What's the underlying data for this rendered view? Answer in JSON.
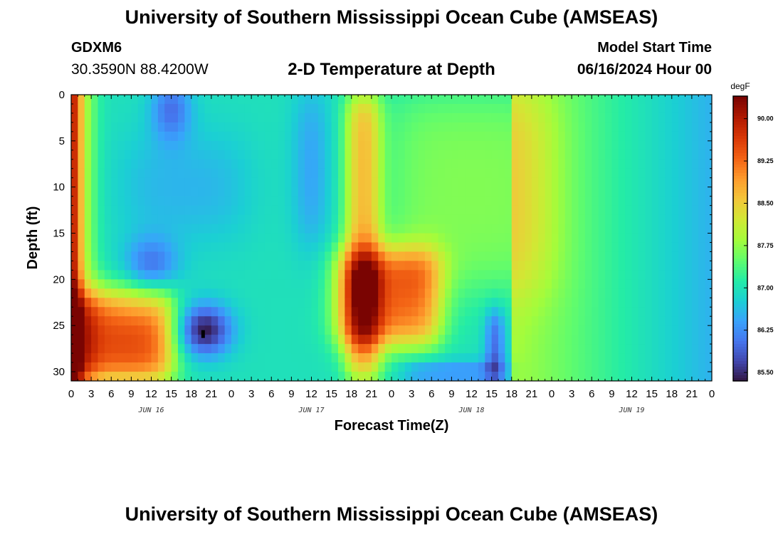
{
  "header": {
    "title": "University of Southern Mississippi Ocean Cube (AMSEAS)",
    "station_id": "GDXM6",
    "station_coords": "30.3590N  88.4200W",
    "chart_title": "2-D Temperature at Depth",
    "model_label": "Model Start Time",
    "model_time": "06/16/2024 Hour 00"
  },
  "footer": {
    "title": "University of Southern Mississippi Ocean Cube (AMSEAS)"
  },
  "chart_data": {
    "type": "heatmap",
    "title": "2-D Temperature at Depth",
    "xlabel": "Forecast Time(Z)",
    "ylabel": "Depth (ft)",
    "x_unit": "hours since 06/16/2024 00Z",
    "xlim": [
      0,
      96
    ],
    "ylim": [
      0,
      31
    ],
    "x_ticks": [
      0,
      3,
      6,
      9,
      12,
      15,
      18,
      21,
      24,
      27,
      30,
      33,
      36,
      39,
      42,
      45,
      48,
      51,
      54,
      57,
      60,
      63,
      66,
      69,
      72,
      75,
      78,
      81,
      84,
      87,
      90,
      93,
      96
    ],
    "x_tick_labels": [
      "0",
      "3",
      "6",
      "9",
      "12",
      "15",
      "18",
      "21",
      "0",
      "3",
      "6",
      "9",
      "12",
      "15",
      "18",
      "21",
      "0",
      "3",
      "6",
      "9",
      "12",
      "15",
      "18",
      "21",
      "0",
      "3",
      "6",
      "9",
      "12",
      "15",
      "18",
      "21",
      "0"
    ],
    "y_ticks": [
      0,
      5,
      10,
      15,
      20,
      25,
      30
    ],
    "y_tick_labels": [
      "0",
      "5",
      "10",
      "15",
      "20",
      "25",
      "30"
    ],
    "date_labels": [
      {
        "hour": 12,
        "text": "JUN 16"
      },
      {
        "hour": 36,
        "text": "JUN 17"
      },
      {
        "hour": 60,
        "text": "JUN 18"
      },
      {
        "hour": 84,
        "text": "JUN 19"
      }
    ],
    "colorbar": {
      "unit": "degF",
      "min": 85.35,
      "max": 90.4,
      "ticks": [
        85.5,
        86.25,
        87.0,
        87.75,
        88.5,
        89.25,
        90.0
      ],
      "tick_labels": [
        "85.50",
        "86.25",
        "87.00",
        "87.75",
        "88.50",
        "89.25",
        "90.00"
      ],
      "colors": [
        "#30123b",
        "#4145ab",
        "#4675ed",
        "#39a2fc",
        "#1bcfd4",
        "#24eca6",
        "#61fc6c",
        "#a4fc3b",
        "#d1e834",
        "#f3c63a",
        "#fe9b2d",
        "#f36315",
        "#d93806",
        "#b11901",
        "#7a0402"
      ]
    },
    "regions": [
      {
        "name": "background",
        "x": [
          0,
          96
        ],
        "depth": [
          0,
          31
        ],
        "temp": 87.0
      },
      {
        "name": "near-surface-cool-core",
        "x": [
          13,
          17
        ],
        "depth": [
          0,
          5
        ],
        "temp": 86.0
      },
      {
        "name": "mid-layer-cool",
        "x": [
          9,
          25
        ],
        "depth": [
          6,
          14
        ],
        "temp": 86.5
      },
      {
        "name": "deep-cool-core",
        "x": [
          9,
          17
        ],
        "depth": [
          16,
          22
        ],
        "temp": 85.8
      },
      {
        "name": "deep-coldest-core",
        "x": [
          17,
          28
        ],
        "depth": [
          22,
          28
        ],
        "temp": 85.5
      },
      {
        "name": "cool-column-jun17",
        "x": [
          32,
          39
        ],
        "depth": [
          0,
          16
        ],
        "temp": 86.5
      },
      {
        "name": "warm-column-jun17",
        "x": [
          42,
          47
        ],
        "depth": [
          0,
          31
        ],
        "temp": 88.6
      },
      {
        "name": "warm-bottom-jun16",
        "x": [
          0,
          16
        ],
        "depth": [
          22,
          31
        ],
        "temp": 89.8
      },
      {
        "name": "warm-jun18-mid",
        "x": [
          40,
          55
        ],
        "depth": [
          17,
          27
        ],
        "temp": 89.0
      },
      {
        "name": "cool-bottom-jun18",
        "x": [
          52,
          65
        ],
        "depth": [
          29,
          31
        ],
        "temp": 86.3
      },
      {
        "name": "cool-core-jun18",
        "x": [
          62,
          65
        ],
        "depth": [
          24,
          31
        ],
        "temp": 86.1
      },
      {
        "name": "warm-plateau-jun18",
        "x": [
          48,
          72
        ],
        "depth": [
          0,
          20
        ],
        "temp": 87.8
      },
      {
        "name": "cool-trend-jun19",
        "x": [
          78,
          96
        ],
        "depth": [
          0,
          31
        ],
        "temp": 86.6
      }
    ]
  }
}
